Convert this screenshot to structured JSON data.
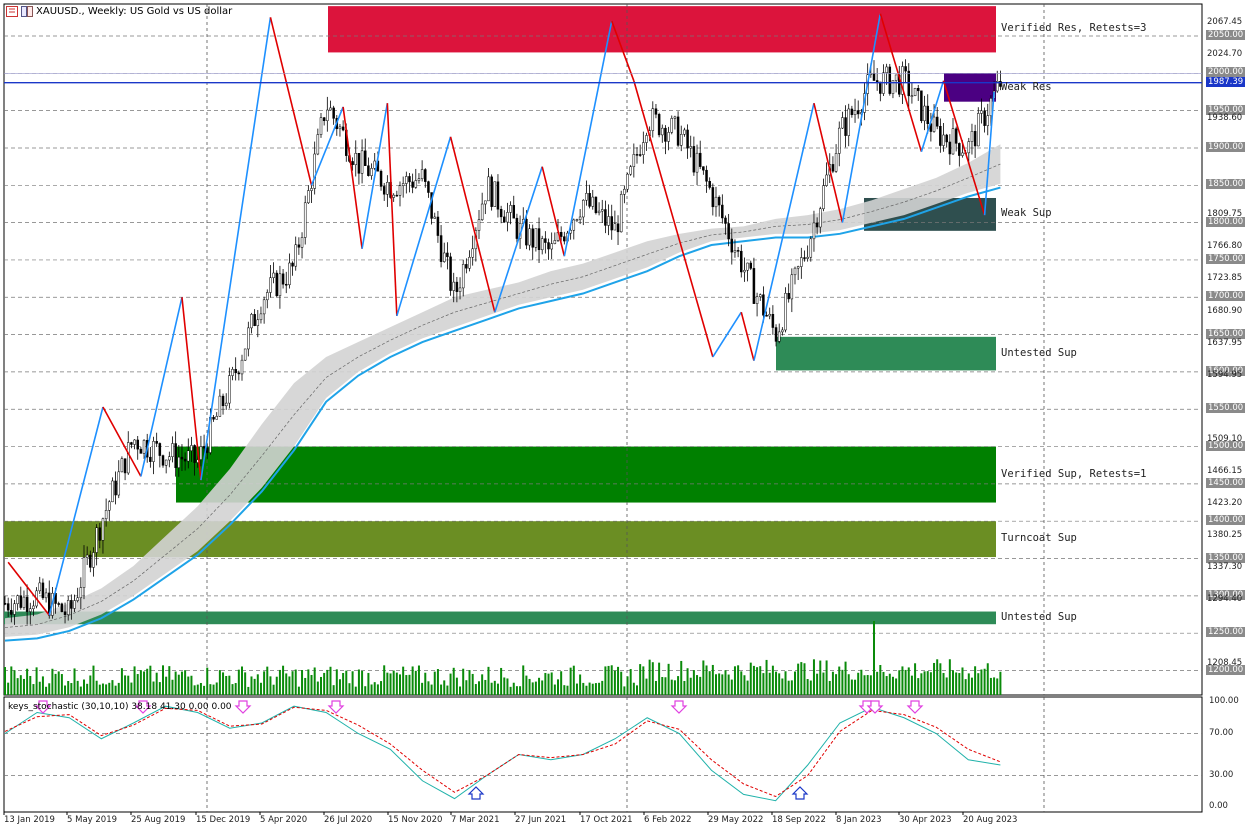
{
  "header": {
    "title": "XAUUSD., Weekly:  US Gold vs US dollar"
  },
  "indicator": {
    "label": "keys_stochastic (30,10,10) 38.18 41.30 0.00 0.00"
  },
  "zones": [
    {
      "label": "Verified Res, Retests=3",
      "top": 2090,
      "bottom": 2028,
      "color": "#dc143c"
    },
    {
      "label": "Weak Res",
      "top": 2000,
      "bottom": 1962,
      "color": "#4b0082"
    },
    {
      "label": "Weak Sup",
      "top": 1833,
      "bottom": 1789,
      "color": "#2f4f4f"
    },
    {
      "label": "Untested Sup",
      "top": 1647,
      "bottom": 1602,
      "color": "#2e8b57"
    },
    {
      "label": "Verified Sup, Retests=1",
      "top": 1500,
      "bottom": 1425,
      "color": "#008000"
    },
    {
      "label": "Turncoat Sup",
      "top": 1400,
      "bottom": 1352,
      "color": "#6b8e23"
    },
    {
      "label": "Untested Sup",
      "top": 1279,
      "bottom": 1262,
      "color": "#2e8b57"
    }
  ],
  "price_axis": {
    "labels": [
      "2067.45",
      "2050.00",
      "2024.70",
      "2000.00",
      "1987.39",
      "1950.00",
      "1938.60",
      "1900.00",
      "1850.00",
      "1809.75",
      "1800.00",
      "1766.80",
      "1750.00",
      "1723.85",
      "1700.00",
      "1680.90",
      "1650.00",
      "1637.95",
      "1600.00",
      "1594.95",
      "1550.00",
      "1509.10",
      "1500.00",
      "1466.15",
      "1450.00",
      "1423.20",
      "1400.00",
      "1380.25",
      "1350.00",
      "1337.30",
      "1300.00",
      "1294.40",
      "1250.00",
      "1208.45",
      "1200.00"
    ],
    "highlighted": [
      "2050.00",
      "2000.00",
      "1950.00",
      "1900.00",
      "1850.00",
      "1800.00",
      "1750.00",
      "1700.00",
      "1650.00",
      "1600.00",
      "1550.00",
      "1500.00",
      "1450.00",
      "1400.00",
      "1350.00",
      "1300.00",
      "1250.00",
      "1200.00"
    ],
    "current": "1987.39"
  },
  "stoch_axis": {
    "labels": [
      "100.00",
      "70.00",
      "30.00",
      "0.00"
    ]
  },
  "date_axis": {
    "labels": [
      "13 Jan 2019",
      "5 May 2019",
      "25 Aug 2019",
      "15 Dec 2019",
      "5 Apr 2020",
      "26 Jul 2020",
      "15 Nov 2020",
      "7 Mar 2021",
      "27 Jun 2021",
      "17 Oct 2021",
      "6 Feb 2022",
      "29 May 2022",
      "18 Sep 2022",
      "8 Jan 2023",
      "30 Apr 2023",
      "20 Aug 2023"
    ]
  },
  "chart_data": {
    "type": "candlestick",
    "symbol": "XAUUSD.",
    "timeframe": "Weekly",
    "ylim": [
      1178,
      2100
    ],
    "current_price": 1987.39,
    "x": [
      "2019-01-13",
      "2019-03-10",
      "2019-05-05",
      "2019-06-30",
      "2019-08-25",
      "2019-10-20",
      "2019-12-15",
      "2020-02-09",
      "2020-04-05",
      "2020-05-31",
      "2020-07-26",
      "2020-09-20",
      "2020-11-15",
      "2021-01-10",
      "2021-03-07",
      "2021-05-02",
      "2021-06-27",
      "2021-08-22",
      "2021-10-17",
      "2021-12-12",
      "2022-02-06",
      "2022-04-03",
      "2022-05-29",
      "2022-07-24",
      "2022-09-18",
      "2022-11-13",
      "2023-01-08",
      "2023-03-05",
      "2023-04-30",
      "2023-06-25",
      "2023-08-20",
      "2023-10-01"
    ],
    "close": [
      1290,
      1300,
      1275,
      1400,
      1510,
      1490,
      1480,
      1580,
      1700,
      1740,
      1960,
      1880,
      1850,
      1860,
      1700,
      1850,
      1790,
      1760,
      1830,
      1790,
      1940,
      1920,
      1840,
      1740,
      1650,
      1770,
      1920,
      1990,
      1990,
      1920,
      1900,
      1987
    ],
    "zigzag": [
      [
        1,
        1345
      ],
      [
        14,
        1274
      ],
      [
        31,
        1553
      ],
      [
        43,
        1460
      ],
      [
        56,
        1700
      ],
      [
        62,
        1455
      ],
      [
        84,
        2075
      ],
      [
        97,
        1850
      ],
      [
        107,
        1955
      ],
      [
        113,
        1765
      ],
      [
        121,
        1960
      ],
      [
        124,
        1675
      ],
      [
        141,
        1915
      ],
      [
        155,
        1680
      ],
      [
        170,
        1875
      ],
      [
        177,
        1755
      ],
      [
        192,
        2070
      ],
      [
        199,
        1990
      ],
      [
        224,
        1620
      ],
      [
        233,
        1680
      ],
      [
        237,
        1615
      ],
      [
        256,
        1960
      ],
      [
        265,
        1800
      ],
      [
        277,
        2080
      ],
      [
        283,
        1995
      ],
      [
        290,
        1895
      ],
      [
        297,
        1990
      ],
      [
        310,
        1810
      ],
      [
        313,
        1975
      ]
    ],
    "ma_lower": [
      1245,
      1248,
      1258,
      1275,
      1300,
      1330,
      1360,
      1400,
      1445,
      1500,
      1565,
      1600,
      1625,
      1645,
      1660,
      1675,
      1690,
      1700,
      1710,
      1725,
      1740,
      1760,
      1775,
      1780,
      1785,
      1785,
      1790,
      1800,
      1810,
      1825,
      1840,
      1852
    ],
    "ma_upper": [
      1270,
      1275,
      1290,
      1310,
      1340,
      1380,
      1420,
      1470,
      1530,
      1585,
      1620,
      1640,
      1660,
      1680,
      1700,
      1710,
      1720,
      1735,
      1745,
      1760,
      1775,
      1785,
      1792,
      1795,
      1805,
      1810,
      1818,
      1830,
      1845,
      1860,
      1880,
      1905
    ],
    "stochastic": {
      "k": [
        70,
        90,
        85,
        65,
        80,
        96,
        90,
        75,
        80,
        96,
        90,
        70,
        55,
        25,
        8,
        30,
        50,
        45,
        50,
        65,
        85,
        70,
        35,
        12,
        6,
        40,
        80,
        95,
        85,
        70,
        45,
        40
      ],
      "d": [
        72,
        86,
        88,
        68,
        78,
        94,
        92,
        77,
        79,
        95,
        92,
        78,
        60,
        35,
        14,
        30,
        50,
        47,
        50,
        60,
        82,
        74,
        45,
        22,
        10,
        30,
        72,
        92,
        88,
        76,
        55,
        43
      ],
      "ylim": [
        0,
        100
      ]
    }
  }
}
